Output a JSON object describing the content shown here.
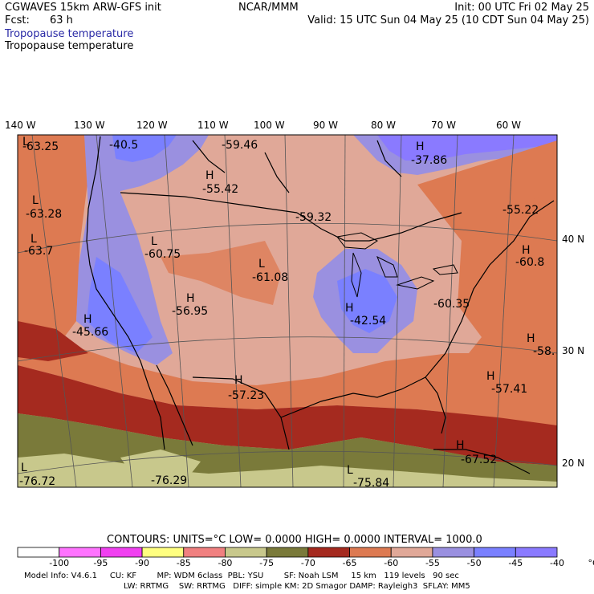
{
  "header": {
    "model": "CGWAVES 15km ARW-GFS init",
    "fcst_label": "Fcst:",
    "fcst_value": "63 h",
    "subtitle_color": "Tropopause temperature",
    "subtitle_black": "Tropopause temperature",
    "center": "NCAR/MMM",
    "init": "Init: 00 UTC Fri 02 May 25",
    "valid": "Valid: 15 UTC Sun 04 May 25 (10 CDT Sun 04 May 25)"
  },
  "longitudes": [
    "140 W",
    "130 W",
    "120 W",
    "110 W",
    "100 W",
    "90 W",
    "80 W",
    "70 W",
    "60 W"
  ],
  "latitudes": [
    "40 N",
    "30 N",
    "20 N"
  ],
  "extrema": [
    {
      "type": "L",
      "value": "-63.25"
    },
    {
      "type": "",
      "value": "-40.5"
    },
    {
      "type": "",
      "value": "-59.46"
    },
    {
      "type": "H",
      "value": "-37.86"
    },
    {
      "type": "H",
      "value": "-55.42"
    },
    {
      "type": "L",
      "value": "-63.28"
    },
    {
      "type": "",
      "value": "-59.32"
    },
    {
      "type": "",
      "value": "-55.22"
    },
    {
      "type": "L",
      "value": "-63.7"
    },
    {
      "type": "L",
      "value": "-60.75"
    },
    {
      "type": "H",
      "value": "-60.8"
    },
    {
      "type": "L",
      "value": "-61.08"
    },
    {
      "type": "H",
      "value": "-56.95"
    },
    {
      "type": "H",
      "value": "-42.54"
    },
    {
      "type": "",
      "value": "-60.35"
    },
    {
      "type": "H",
      "value": "-45.66"
    },
    {
      "type": "H",
      "value": "-58."
    },
    {
      "type": "H",
      "value": "-57.23"
    },
    {
      "type": "H",
      "value": "-57.41"
    },
    {
      "type": "H",
      "value": "-67.52"
    },
    {
      "type": "L",
      "value": "-76.72"
    },
    {
      "type": "",
      "value": "-76.29"
    },
    {
      "type": "L",
      "value": "-75.84"
    }
  ],
  "contours": {
    "text": "CONTOURS:  UNITS=°C  LOW=  0.0000        HIGH=  0.0000        INTERVAL=   1000.0"
  },
  "colorbar": {
    "colors": [
      "#ffffff",
      "#ff73ff",
      "#f040f0",
      "#ffff80",
      "#f08080",
      "#c8c88c",
      "#7a7a3a",
      "#a52a1f",
      "#dd7a52",
      "#e0a898",
      "#9a90e0",
      "#7a80ff",
      "#8a7aff"
    ],
    "labels": [
      "-100",
      "-95",
      "-90",
      "-85",
      "-80",
      "-75",
      "-70",
      "-65",
      "-60",
      "-55",
      "-50",
      "-45",
      "-40",
      "°C"
    ]
  },
  "footer": {
    "line1": "Model Info: V4.6.1     CU: KF        MP: WDM 6class  PBL: YSU        SF: Noah LSM     15 km   119 levels   90 sec",
    "line2": "LW: RRTMG    SW: RRTMG   DIFF: simple KM: 2D Smagor DAMP: Rayleigh3  SFLAY: MM5"
  }
}
